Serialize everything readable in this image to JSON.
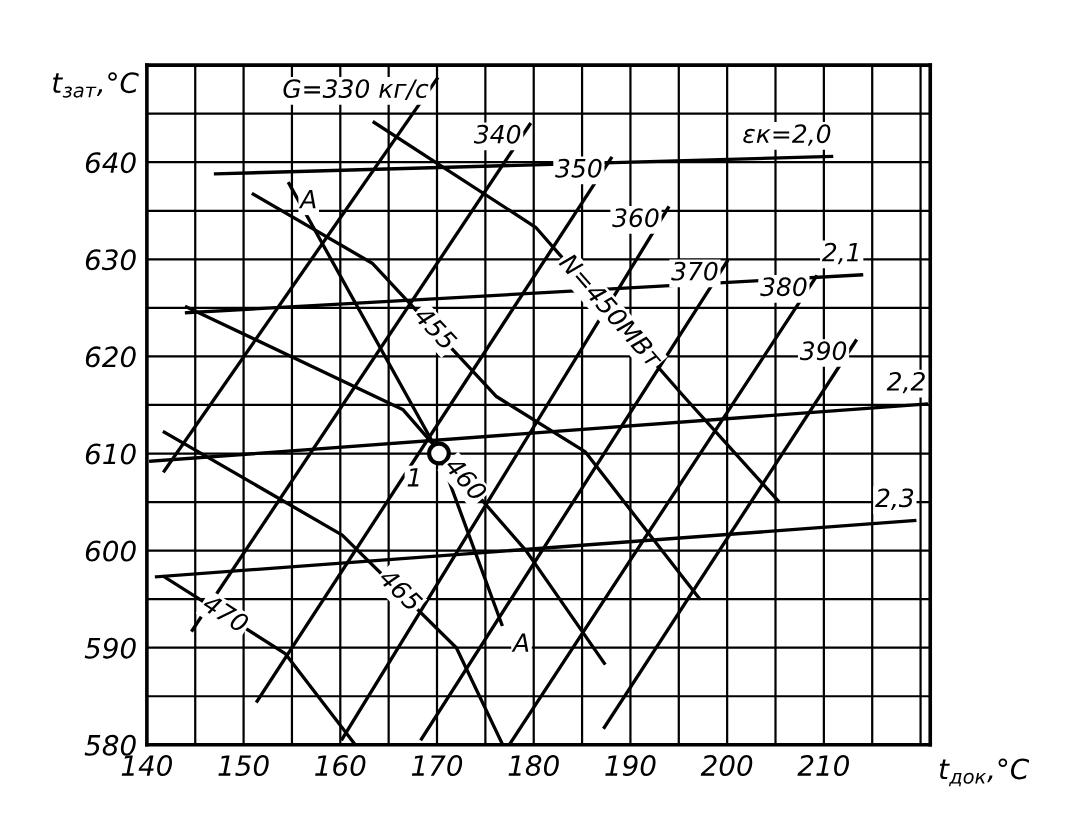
{
  "chart_data": {
    "type": "line",
    "xlabel": "t$_{док}$,°C",
    "ylabel": "t$_{зат}$,°C",
    "xlim": [
      140,
      221
    ],
    "ylim": [
      580,
      650
    ],
    "xticks": [
      140,
      {
        "value": 145,
        "label": null
      },
      150,
      {
        "value": 155,
        "label": null
      },
      160,
      {
        "value": 165,
        "label": null
      },
      170,
      {
        "value": 175,
        "label": null
      },
      180,
      {
        "value": 185,
        "label": null
      },
      190,
      {
        "value": 195,
        "label": null
      },
      200,
      {
        "value": 205,
        "label": null
      },
      210,
      {
        "value": 215,
        "label": null
      },
      {
        "value": 220,
        "label": null
      }
    ],
    "yticks": [
      580,
      {
        "value": 585,
        "label": null
      },
      590,
      {
        "value": 595,
        "label": null
      },
      600,
      {
        "value": 605,
        "label": null
      },
      610,
      {
        "value": 615,
        "label": null
      },
      620,
      {
        "value": 625,
        "label": null
      },
      630,
      {
        "value": 635,
        "label": null
      },
      640,
      {
        "value": 645,
        "label": null
      }
    ],
    "grid": true,
    "legend": false,
    "marker": "none",
    "line_style": "solid",
    "series": [
      {
        "name": "εк=2,0",
        "color": "#000000",
        "x": [
          147.1,
          210.8
        ],
        "values": [
          638.8,
          640.6
        ]
      },
      {
        "name": "2,1",
        "color": "#000000",
        "x": [
          144.1,
          213.9
        ],
        "values": [
          624.5,
          628.4
        ]
      },
      {
        "name": "2,2",
        "color": "#000000",
        "x": [
          140.4,
          220.6
        ],
        "values": [
          609.2,
          615.1
        ]
      },
      {
        "name": "2,3",
        "color": "#000000",
        "x": [
          141.0,
          219.4
        ],
        "values": [
          597.3,
          603.1
        ]
      },
      {
        "name": "G=330 кг/с",
        "color": "#000000",
        "x": [
          141.8,
          170.0
        ],
        "values": [
          608.2,
          648.6
        ]
      },
      {
        "name": "340",
        "color": "#000000",
        "x": [
          144.7,
          179.6
        ],
        "values": [
          591.8,
          643.9
        ]
      },
      {
        "name": "350",
        "color": "#000000",
        "x": [
          151.4,
          188.0
        ],
        "values": [
          584.5,
          640.4
        ]
      },
      {
        "name": "360",
        "color": "#000000",
        "x": [
          160.2,
          193.9
        ],
        "values": [
          580.6,
          635.3
        ]
      },
      {
        "name": "370",
        "color": "#000000",
        "x": [
          168.4,
          200.0
        ],
        "values": [
          580.6,
          629.8
        ]
      },
      {
        "name": "380",
        "color": "#000000",
        "x": [
          177.6,
          209.2
        ],
        "values": [
          580.2,
          628.2
        ]
      },
      {
        "name": "390",
        "color": "#000000",
        "x": [
          187.3,
          213.3
        ],
        "values": [
          581.8,
          621.6
        ]
      },
      {
        "name": "N=450МВт",
        "color": "#000000",
        "x": [
          163.5,
          180.2,
          195.5,
          205.3
        ],
        "values": [
          644.1,
          633.3,
          615.9,
          605.1
        ]
      },
      {
        "name": "455",
        "color": "#000000",
        "x": [
          151.0,
          163.3,
          176.1,
          185.3,
          197.1
        ],
        "values": [
          636.7,
          629.6,
          615.9,
          610.2,
          595.1
        ]
      },
      {
        "name": "460",
        "color": "#000000",
        "x": [
          144.1,
          166.5,
          179.2,
          187.3
        ],
        "values": [
          625.1,
          614.5,
          600.0,
          588.4
        ]
      },
      {
        "name": "465",
        "color": "#000000",
        "x": [
          141.8,
          160.2,
          172.0,
          176.7
        ],
        "values": [
          612.2,
          601.6,
          590.0,
          580.2
        ]
      },
      {
        "name": "470",
        "color": "#000000",
        "x": [
          141.8,
          154.3,
          161.4
        ],
        "values": [
          597.3,
          589.4,
          580.2
        ]
      },
      {
        "name": "A",
        "color": "#000000",
        "x": [
          154.7,
          170.2,
          176.7
        ],
        "values": [
          637.8,
          610.0,
          592.4
        ]
      },
      {
        "name": "1",
        "type": "scatter",
        "marker": "circle",
        "color": "#000000",
        "x": [
          170.2
        ],
        "values": [
          610.0
        ]
      }
    ],
    "annotations": [
      {
        "text": "A",
        "x": 176.7,
        "y": 592.4
      }
    ]
  }
}
